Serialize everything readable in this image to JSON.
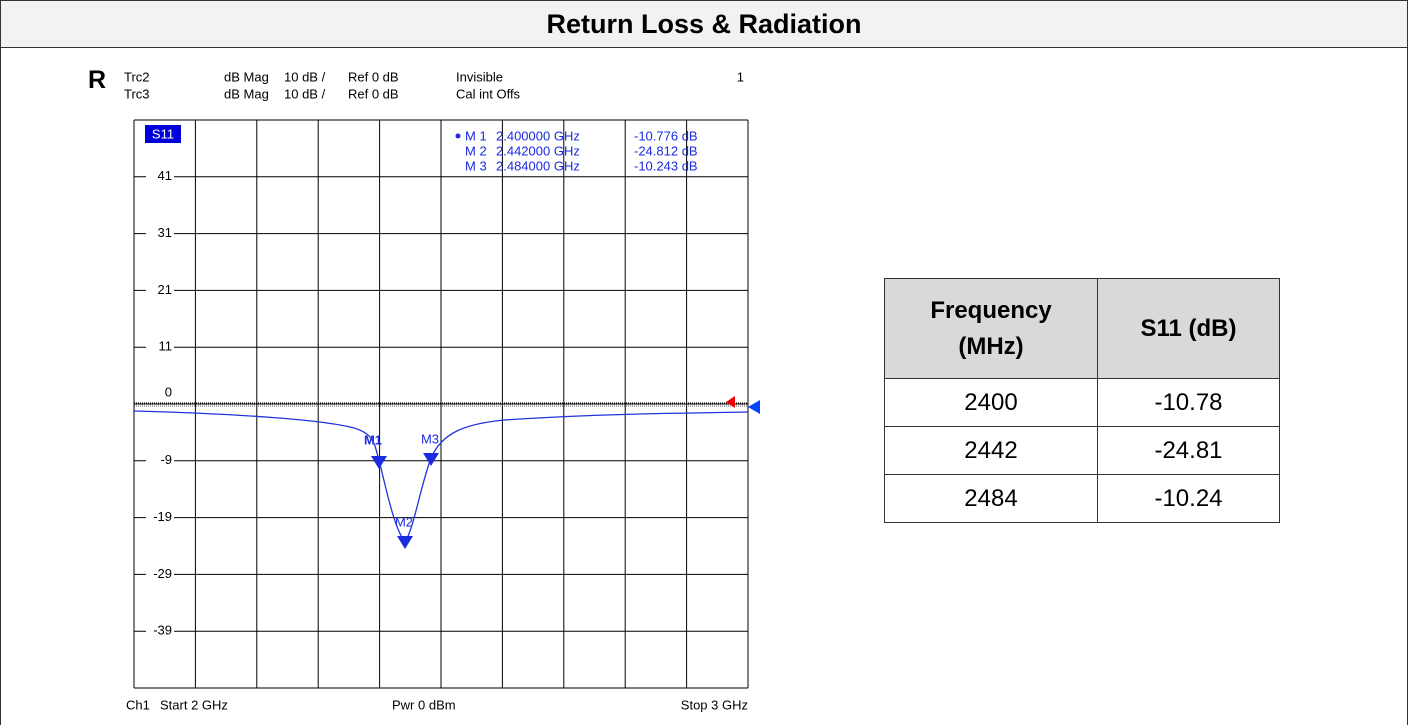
{
  "header": {
    "title": "Return Loss & Radiation"
  },
  "section_label": "R",
  "plot": {
    "traces": [
      [
        "Trc2",
        "dB Mag",
        "10 dB /",
        "Ref 0 dB",
        "Invisible",
        "1"
      ],
      [
        "Trc3",
        "dB Mag",
        "10 dB /",
        "Ref 0 dB",
        "Cal int Offs"
      ]
    ],
    "badge": "S11",
    "y_labels": [
      "41",
      "31",
      "21",
      "11",
      "0",
      "-9",
      "-19",
      "-29",
      "-39"
    ],
    "markers": [
      {
        "label": "M 1",
        "frequency": "2.400000 GHz",
        "value": "-10.776 dB",
        "tag": "M1"
      },
      {
        "label": "M 2",
        "frequency": "2.442000 GHz",
        "value": "-24.812 dB",
        "tag": "M2"
      },
      {
        "label": "M 3",
        "frequency": "2.484000 GHz",
        "value": "-10.243 dB",
        "tag": "M3"
      }
    ],
    "footer": [
      "Ch1",
      "Start 2 GHz",
      "Pwr 0 dBm",
      "Stop 3 GHz"
    ]
  },
  "table": {
    "headers": [
      "Frequency (MHz)",
      "S11 (dB)"
    ],
    "rows": [
      [
        "2400",
        "-10.78"
      ],
      [
        "2442",
        "-24.81"
      ],
      [
        "2484",
        "-10.24"
      ]
    ]
  }
}
